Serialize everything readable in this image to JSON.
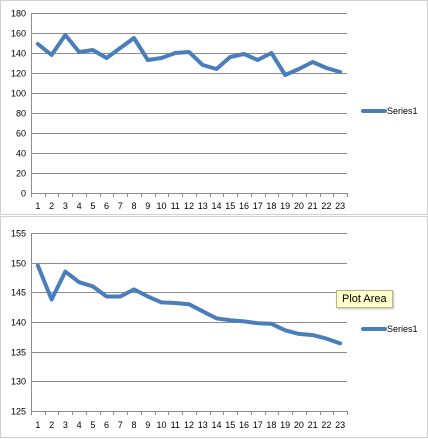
{
  "colors": {
    "series": "#4a7ebb",
    "grid": "#8c8c8c"
  },
  "tooltip": {
    "text": "Plot Area"
  },
  "chart_data": [
    {
      "type": "line",
      "x": [
        1,
        2,
        3,
        4,
        5,
        6,
        7,
        8,
        9,
        10,
        11,
        12,
        13,
        14,
        15,
        16,
        17,
        18,
        19,
        20,
        21,
        22,
        23
      ],
      "series": [
        {
          "name": "Series1",
          "values": [
            149,
            138,
            158,
            141,
            143,
            135,
            145,
            155,
            133,
            135,
            140,
            141,
            128,
            124,
            136,
            139,
            133,
            140,
            118,
            124,
            131,
            125,
            121
          ]
        }
      ],
      "ylim": [
        0,
        180
      ],
      "yticks": [
        0,
        20,
        40,
        60,
        80,
        100,
        120,
        140,
        160,
        180
      ],
      "grid": true,
      "legend": "right"
    },
    {
      "type": "line",
      "x": [
        1,
        2,
        3,
        4,
        5,
        6,
        7,
        8,
        9,
        10,
        11,
        12,
        13,
        14,
        15,
        16,
        17,
        18,
        19,
        20,
        21,
        22,
        23
      ],
      "series": [
        {
          "name": "Series1",
          "values": [
            149.5,
            143.8,
            148.5,
            146.7,
            146.0,
            144.3,
            144.3,
            145.5,
            144.3,
            143.3,
            143.2,
            143.0,
            141.8,
            140.6,
            140.3,
            140.1,
            139.8,
            139.7,
            138.6,
            138.0,
            137.8,
            137.2,
            136.4
          ]
        }
      ],
      "ylim": [
        125,
        155
      ],
      "yticks": [
        125,
        130,
        135,
        140,
        145,
        150,
        155
      ],
      "grid": true,
      "legend": "right"
    }
  ]
}
